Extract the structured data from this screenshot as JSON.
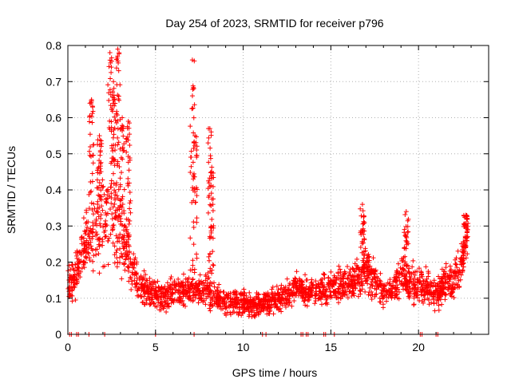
{
  "chart_data": {
    "type": "scatter",
    "title": "Day 254 of 2023, SRMTID for receiver p796",
    "xlabel": "GPS time / hours",
    "ylabel": "SRMTID / TECUs",
    "xlim": [
      0,
      24
    ],
    "ylim": [
      0,
      0.8
    ],
    "x_ticks": [
      0,
      5,
      10,
      15,
      20
    ],
    "x_tick_labels": [
      "0",
      "5",
      "10",
      "15",
      "20"
    ],
    "y_ticks": [
      0,
      0.1,
      0.2,
      0.3,
      0.4,
      0.5,
      0.6,
      0.7,
      0.8
    ],
    "y_tick_labels": [
      "0",
      "0.1",
      "0.2",
      "0.3",
      "0.4",
      "0.5",
      "0.6",
      "0.7",
      "0.8"
    ],
    "grid": true,
    "marker": "+",
    "series_color": "#ff0000",
    "envelope": {
      "x": [
        0.0,
        0.5,
        1.0,
        1.5,
        2.0,
        2.5,
        2.8,
        3.2,
        3.6,
        4.0,
        4.5,
        5.0,
        5.5,
        6.0,
        6.5,
        7.0,
        7.5,
        8.0,
        8.5,
        9.0,
        9.5,
        10.0,
        10.5,
        11.0,
        11.5,
        12.0,
        12.5,
        13.0,
        13.5,
        14.0,
        14.5,
        15.0,
        15.5,
        16.0,
        16.5,
        17.0,
        17.5,
        18.0,
        18.5,
        19.0,
        19.5,
        20.0,
        20.5,
        21.0,
        21.5,
        22.0,
        22.5,
        22.8
      ],
      "typical": [
        0.13,
        0.17,
        0.24,
        0.3,
        0.32,
        0.35,
        0.33,
        0.26,
        0.2,
        0.14,
        0.12,
        0.11,
        0.1,
        0.12,
        0.12,
        0.13,
        0.12,
        0.12,
        0.1,
        0.09,
        0.09,
        0.09,
        0.08,
        0.08,
        0.09,
        0.1,
        0.11,
        0.13,
        0.12,
        0.12,
        0.12,
        0.13,
        0.14,
        0.14,
        0.15,
        0.18,
        0.15,
        0.12,
        0.12,
        0.17,
        0.14,
        0.14,
        0.13,
        0.11,
        0.14,
        0.15,
        0.2,
        0.27
      ],
      "spread": [
        0.05,
        0.06,
        0.08,
        0.14,
        0.16,
        0.17,
        0.16,
        0.1,
        0.07,
        0.04,
        0.04,
        0.04,
        0.04,
        0.04,
        0.04,
        0.04,
        0.04,
        0.04,
        0.035,
        0.035,
        0.035,
        0.035,
        0.03,
        0.03,
        0.035,
        0.035,
        0.04,
        0.04,
        0.04,
        0.04,
        0.04,
        0.04,
        0.05,
        0.05,
        0.06,
        0.07,
        0.06,
        0.04,
        0.04,
        0.06,
        0.05,
        0.05,
        0.05,
        0.04,
        0.05,
        0.05,
        0.05,
        0.04
      ]
    },
    "peaks": [
      {
        "x": 1.35,
        "y": 0.65
      },
      {
        "x": 1.8,
        "y": 0.55
      },
      {
        "x": 2.4,
        "y": 0.78
      },
      {
        "x": 2.6,
        "y": 0.7
      },
      {
        "x": 2.85,
        "y": 0.79
      },
      {
        "x": 3.1,
        "y": 0.6
      },
      {
        "x": 3.45,
        "y": 0.59
      },
      {
        "x": 7.1,
        "y": 0.76
      },
      {
        "x": 7.25,
        "y": 0.55
      },
      {
        "x": 8.1,
        "y": 0.57
      },
      {
        "x": 8.2,
        "y": 0.45
      },
      {
        "x": 16.8,
        "y": 0.36
      },
      {
        "x": 19.3,
        "y": 0.34
      },
      {
        "x": 22.7,
        "y": 0.33
      }
    ],
    "zero_points": [
      0.1,
      0.2,
      0.5,
      0.6,
      1.2,
      2.1,
      5.0,
      7.2,
      11.1,
      11.3,
      13.3,
      13.4,
      13.6,
      13.7,
      14.6,
      14.7,
      15.2,
      20.1,
      20.2,
      21.0,
      21.1
    ],
    "point_count": 2300
  }
}
